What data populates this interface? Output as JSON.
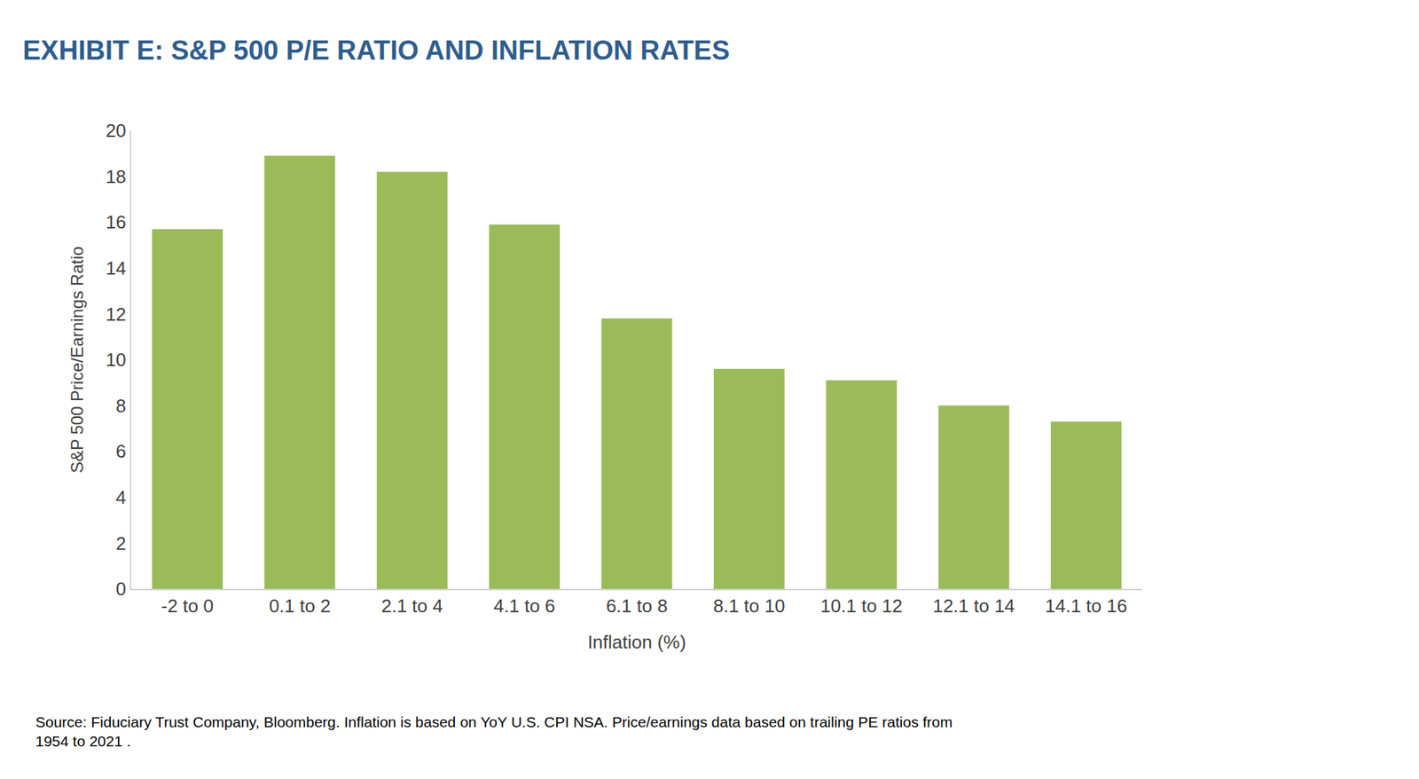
{
  "chart_data": {
    "type": "bar",
    "title": "EXHIBIT E: S&P 500 P/E RATIO AND INFLATION RATES",
    "x_label": "Inflation (%)",
    "y_label": "S&P 500 Price/Earnings Ratio",
    "categories": [
      "-2 to 0",
      "0.1 to 2",
      "2.1 to 4",
      "4.1 to 6",
      "6.1 to 8",
      "8.1 to 10",
      "10.1 to 12",
      "12.1 to 14",
      "14.1 to 16"
    ],
    "values": [
      15.7,
      18.9,
      18.2,
      15.9,
      11.8,
      9.6,
      9.1,
      8.0,
      7.3
    ],
    "color": "#9bbb59",
    "ylim": [
      0,
      20
    ],
    "yticks": [
      0,
      2,
      4,
      6,
      8,
      10,
      12,
      14,
      16,
      18,
      20
    ],
    "grid": false,
    "annotations": [
      "Source: Fiduciary Trust Company, Bloomberg. Inflation is based on YoY U.S. CPI NSA. Price/earnings data based on trailing PE ratios from",
      "1954 to 2021 ."
    ]
  }
}
